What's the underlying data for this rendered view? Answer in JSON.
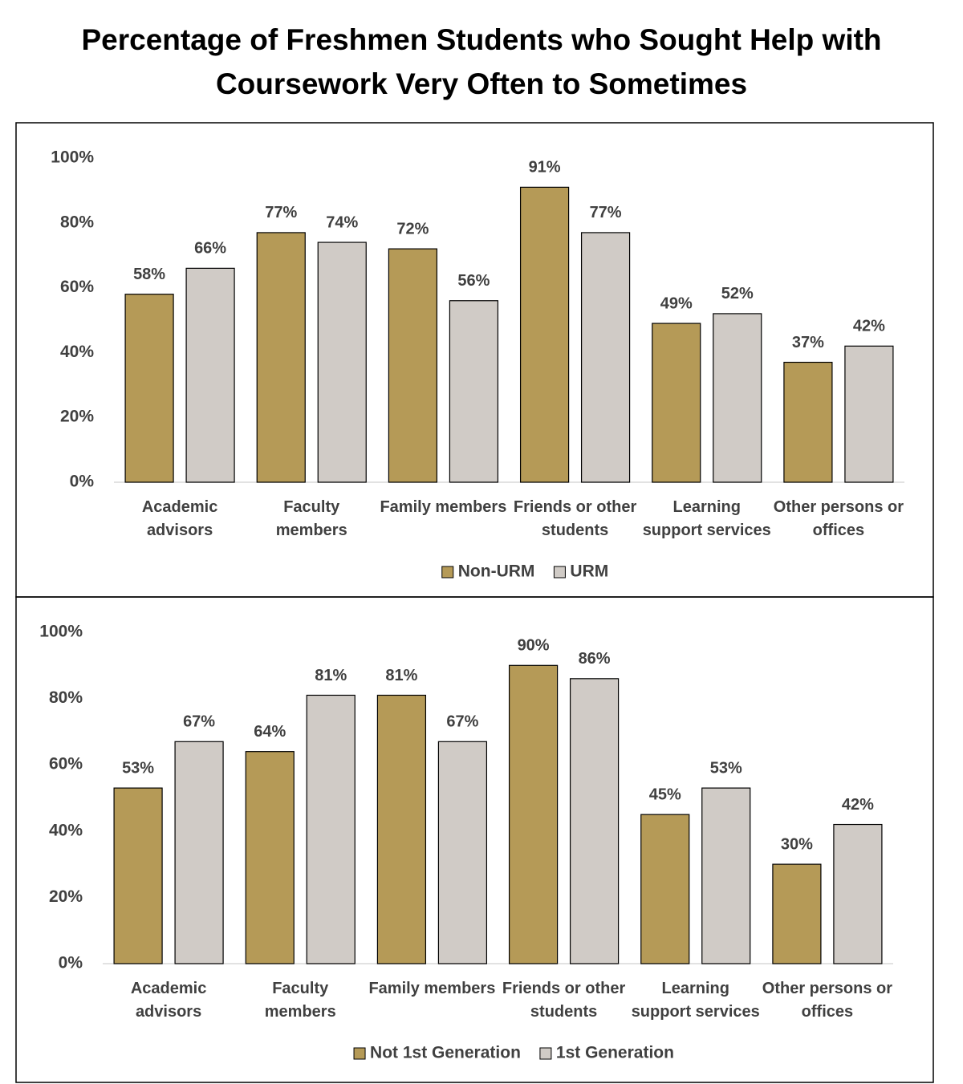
{
  "title": "Percentage of Freshmen Students who Sought Help with Coursework Very Often to Sometimes",
  "chart_data": [
    {
      "type": "bar",
      "categories": [
        "Academic advisors",
        "Faculty members",
        "Family members",
        "Friends or other students",
        "Learning support services",
        "Other persons or offices"
      ],
      "series": [
        {
          "name": "Non-URM",
          "color": "#b59a57",
          "values": [
            58,
            77,
            72,
            91,
            49,
            37
          ],
          "value_labels": [
            "58%",
            "77%",
            "72%",
            "91%",
            "49%",
            "37%"
          ]
        },
        {
          "name": "URM",
          "color": "#d0cbc6",
          "values": [
            66,
            74,
            56,
            77,
            52,
            42
          ],
          "value_labels": [
            "66%",
            "74%",
            "56%",
            "77%",
            "52%",
            "42%"
          ]
        }
      ],
      "ylim": [
        0,
        100
      ],
      "yticks": [
        {
          "value": 0,
          "label": "0%"
        },
        {
          "value": 20,
          "label": "20%"
        },
        {
          "value": 40,
          "label": "40%"
        },
        {
          "value": 60,
          "label": "60%"
        },
        {
          "value": 80,
          "label": "80%"
        },
        {
          "value": 100,
          "label": "100%"
        }
      ],
      "grid": false,
      "legend": "bottom"
    },
    {
      "type": "bar",
      "categories": [
        "Academic advisors",
        "Faculty members",
        "Family members",
        "Friends or other students",
        "Learning support services",
        "Other persons or offices"
      ],
      "series": [
        {
          "name": "Not 1st Generation",
          "color": "#b59a57",
          "values": [
            53,
            64,
            81,
            90,
            45,
            30
          ],
          "value_labels": [
            "53%",
            "64%",
            "81%",
            "90%",
            "45%",
            "30%"
          ]
        },
        {
          "name": "1st Generation",
          "color": "#d0cbc6",
          "values": [
            67,
            81,
            67,
            86,
            53,
            42
          ],
          "value_labels": [
            "67%",
            "81%",
            "67%",
            "86%",
            "53%",
            "42%"
          ]
        }
      ],
      "ylim": [
        0,
        100
      ],
      "yticks": [
        {
          "value": 0,
          "label": "0%"
        },
        {
          "value": 20,
          "label": "20%"
        },
        {
          "value": 40,
          "label": "40%"
        },
        {
          "value": 60,
          "label": "60%"
        },
        {
          "value": 80,
          "label": "80%"
        },
        {
          "value": 100,
          "label": "100%"
        }
      ],
      "grid": false,
      "legend": "bottom"
    }
  ]
}
